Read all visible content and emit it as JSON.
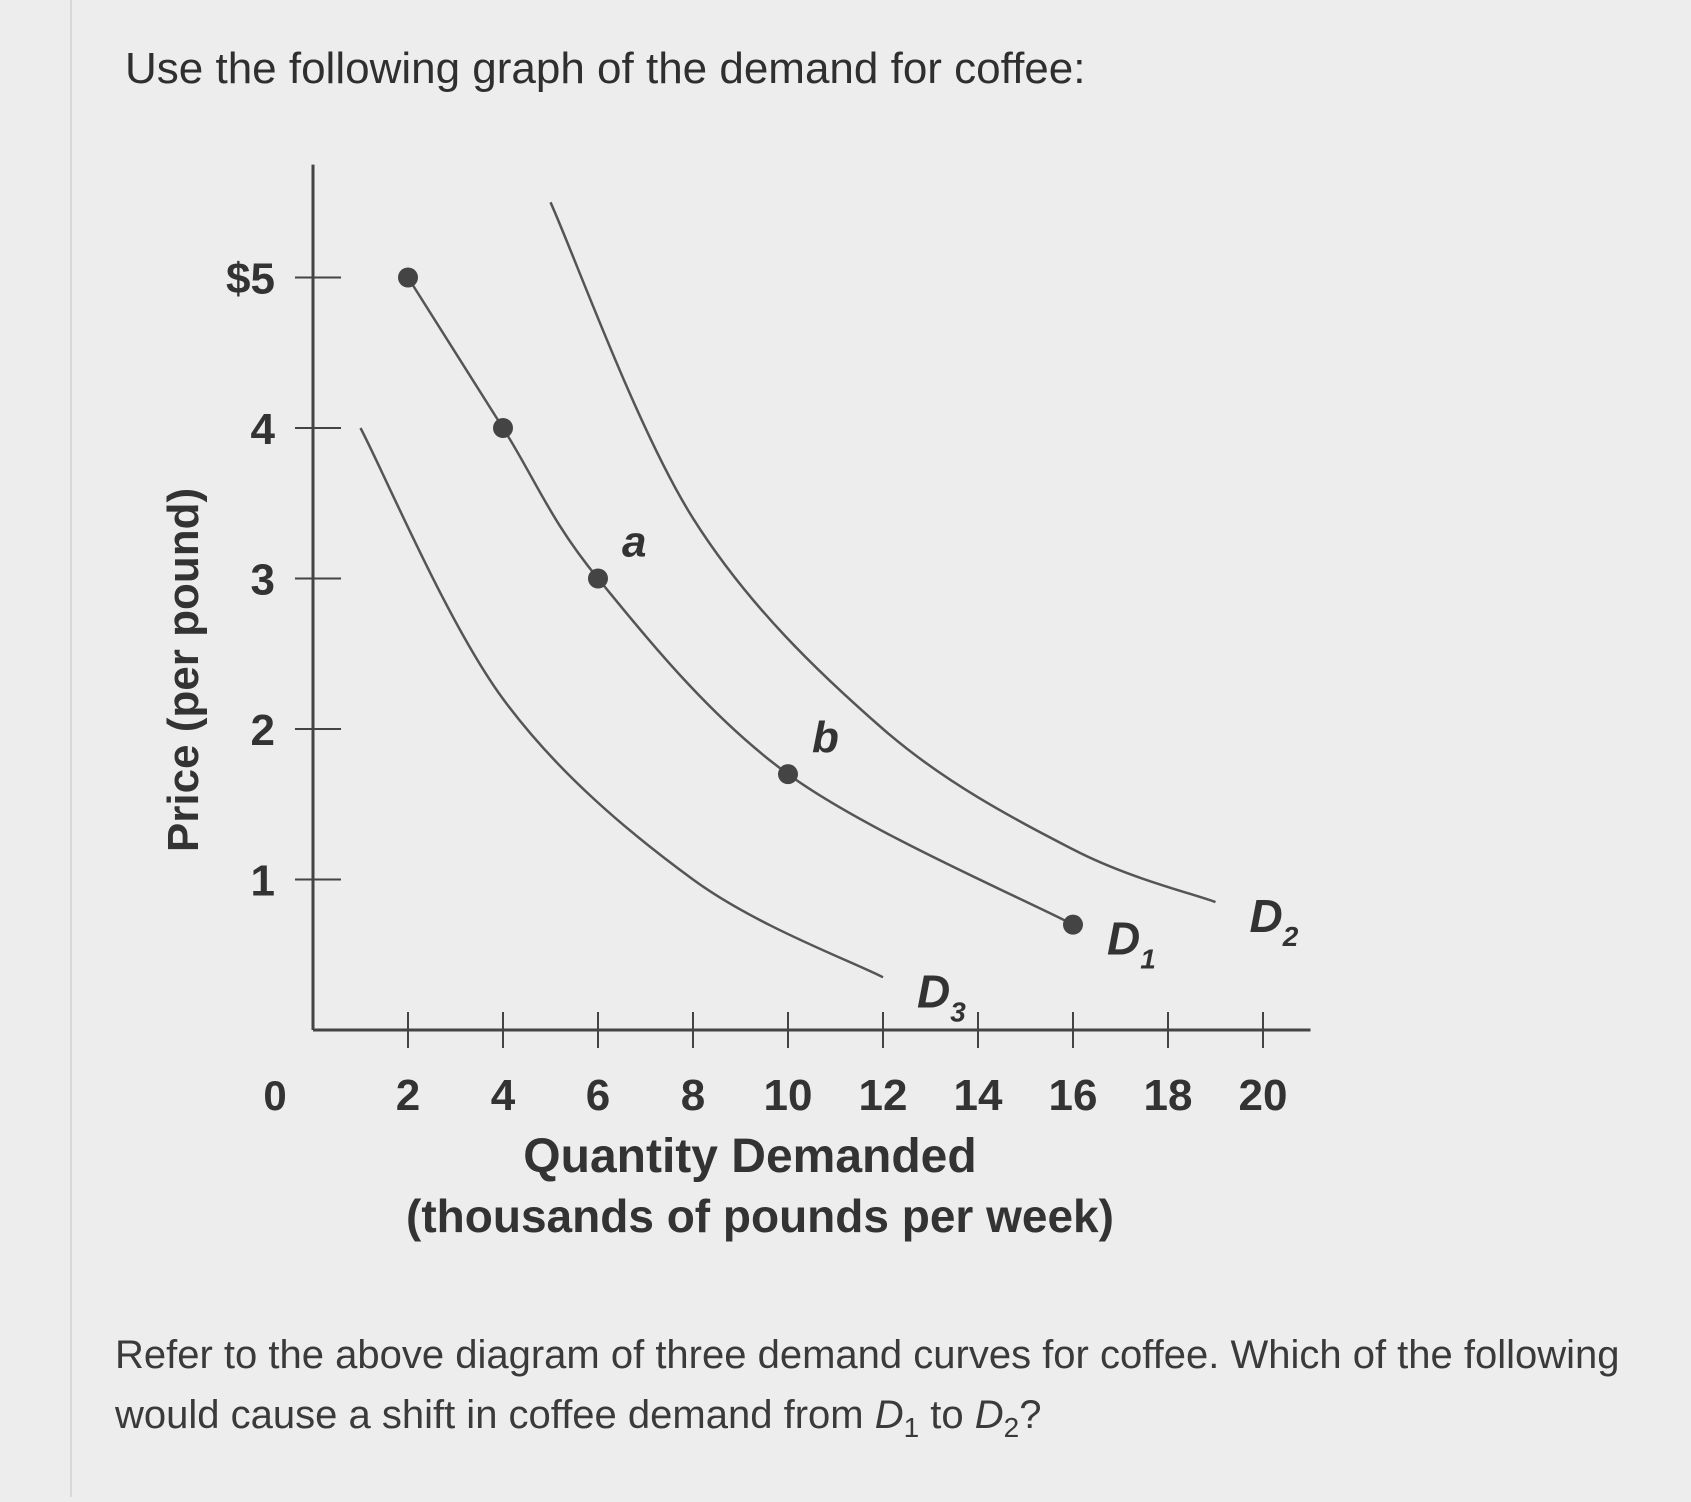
{
  "intro": "Use the following graph of the demand for coffee:",
  "question": {
    "before": "Refer to the above diagram of three demand curves for coffee. Which of the following would cause a shift in coffee demand from ",
    "d1_letter": "D",
    "d1_sub": "1",
    "middle": " to ",
    "d2_letter": "D",
    "d2_sub": "2",
    "after": "?"
  },
  "colors": {
    "curve": "#555555",
    "axis": "#444444",
    "point": "#444444",
    "text": "#333333"
  },
  "chart_data": {
    "type": "line",
    "xlabel": "Quantity Demanded",
    "xlabel_sub": "(thousands of pounds per week)",
    "ylabel": "Price (per pound)",
    "xlim": [
      0,
      21
    ],
    "ylim": [
      0,
      5.8
    ],
    "x_ticks": [
      2,
      4,
      6,
      8,
      10,
      12,
      14,
      16,
      18,
      20
    ],
    "x_tick_labels": [
      "2",
      "4",
      "6",
      "8",
      "10",
      "12",
      "14",
      "16",
      "18",
      "20"
    ],
    "y_ticks": [
      1,
      2,
      3,
      4,
      5
    ],
    "y_tick_labels": [
      "1",
      "2",
      "3",
      "4",
      "$5"
    ],
    "origin_label": "0",
    "series": [
      {
        "name": "D",
        "sub": "1",
        "points": [
          [
            2,
            5
          ],
          [
            4,
            4
          ],
          [
            6,
            3
          ],
          [
            10,
            1.7
          ],
          [
            16,
            0.7
          ]
        ],
        "markers": true
      },
      {
        "name": "D",
        "sub": "2",
        "points": [
          [
            5,
            5.5
          ],
          [
            8,
            3.4
          ],
          [
            12,
            2.0
          ],
          [
            16,
            1.2
          ],
          [
            19,
            0.85
          ]
        ],
        "markers": false
      },
      {
        "name": "D",
        "sub": "3",
        "points": [
          [
            1,
            4
          ],
          [
            4,
            2.2
          ],
          [
            8,
            1.0
          ],
          [
            12,
            0.35
          ]
        ],
        "markers": false
      }
    ],
    "annotations": [
      {
        "text": "a",
        "x": 6,
        "y": 3
      },
      {
        "text": "b",
        "x": 10,
        "y": 1.7
      }
    ]
  }
}
